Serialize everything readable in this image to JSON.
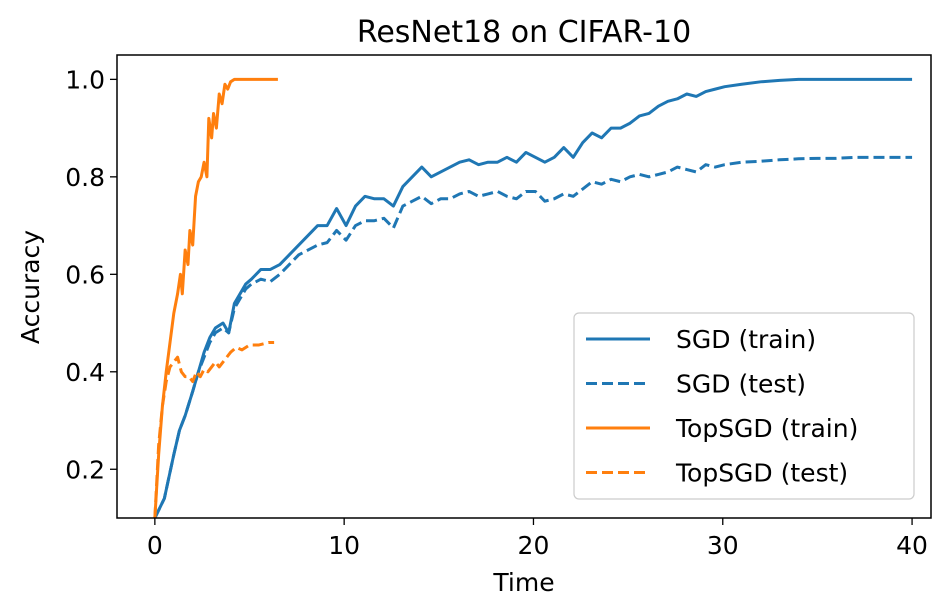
{
  "chart_data": {
    "type": "line",
    "title": "ResNet18 on CIFAR-10",
    "xlabel": "Time",
    "ylabel": "Accuracy",
    "xlim": [
      -2,
      41
    ],
    "ylim": [
      0.1,
      1.05
    ],
    "xticks": [
      "0",
      "10",
      "20",
      "30",
      "40"
    ],
    "yticks": [
      "0.2",
      "0.4",
      "0.6",
      "0.8",
      "1.0"
    ],
    "grid": false,
    "legend_position": "bottom-right",
    "series": [
      {
        "name": "SGD (train)",
        "color": "#1f77b4",
        "dash": "solid",
        "x": [
          0,
          0.5,
          1,
          1.3,
          1.6,
          2,
          2.3,
          2.6,
          2.9,
          3.2,
          3.6,
          3.9,
          4.2,
          4.5,
          4.8,
          5.1,
          5.6,
          6.1,
          6.6,
          7.1,
          7.6,
          8.1,
          8.6,
          9.1,
          9.6,
          10.1,
          10.6,
          11.1,
          11.6,
          12.1,
          12.6,
          13.1,
          13.6,
          14.1,
          14.6,
          15.1,
          15.6,
          16.1,
          16.6,
          17.1,
          17.6,
          18.1,
          18.6,
          19.1,
          19.6,
          20.1,
          20.6,
          21.1,
          21.6,
          22.1,
          22.6,
          23.1,
          23.6,
          24.1,
          24.6,
          25.1,
          25.6,
          26.1,
          26.6,
          27.1,
          27.6,
          28.1,
          28.6,
          29.1,
          29.6,
          30.1,
          31,
          32,
          33,
          34,
          35,
          36,
          37,
          38,
          39,
          40
        ],
        "y": [
          0.1,
          0.14,
          0.23,
          0.28,
          0.31,
          0.36,
          0.4,
          0.44,
          0.47,
          0.49,
          0.5,
          0.48,
          0.54,
          0.56,
          0.58,
          0.59,
          0.61,
          0.61,
          0.62,
          0.64,
          0.66,
          0.68,
          0.7,
          0.7,
          0.735,
          0.7,
          0.74,
          0.76,
          0.755,
          0.755,
          0.74,
          0.78,
          0.8,
          0.82,
          0.8,
          0.81,
          0.82,
          0.83,
          0.835,
          0.825,
          0.83,
          0.83,
          0.84,
          0.83,
          0.85,
          0.84,
          0.83,
          0.84,
          0.86,
          0.84,
          0.87,
          0.89,
          0.88,
          0.9,
          0.9,
          0.91,
          0.925,
          0.93,
          0.945,
          0.955,
          0.96,
          0.97,
          0.965,
          0.975,
          0.98,
          0.985,
          0.99,
          0.995,
          0.998,
          1.0,
          1.0,
          1.0,
          1.0,
          1.0,
          1.0,
          1.0
        ]
      },
      {
        "name": "SGD (test)",
        "color": "#1f77b4",
        "dash": "dashed",
        "x": [
          0,
          0.5,
          1,
          1.3,
          1.6,
          2,
          2.3,
          2.6,
          2.9,
          3.2,
          3.6,
          3.9,
          4.2,
          4.5,
          4.8,
          5.1,
          5.6,
          6.1,
          6.6,
          7.1,
          7.6,
          8.1,
          8.6,
          9.1,
          9.6,
          10.1,
          10.6,
          11.1,
          11.6,
          12.1,
          12.6,
          13.1,
          13.6,
          14.1,
          14.6,
          15.1,
          15.6,
          16.1,
          16.6,
          17.1,
          17.6,
          18.1,
          18.6,
          19.1,
          19.6,
          20.1,
          20.6,
          21.1,
          21.6,
          22.1,
          22.6,
          23.1,
          23.6,
          24.1,
          24.6,
          25.1,
          25.6,
          26.1,
          26.6,
          27.1,
          27.6,
          28.1,
          28.6,
          29.1,
          29.6,
          30.1,
          31,
          32,
          33,
          34,
          35,
          36,
          37,
          38,
          39,
          40
        ],
        "y": [
          0.1,
          0.14,
          0.23,
          0.28,
          0.31,
          0.36,
          0.4,
          0.43,
          0.46,
          0.48,
          0.49,
          0.48,
          0.53,
          0.55,
          0.57,
          0.58,
          0.59,
          0.585,
          0.6,
          0.62,
          0.64,
          0.65,
          0.66,
          0.665,
          0.69,
          0.67,
          0.7,
          0.71,
          0.71,
          0.715,
          0.695,
          0.74,
          0.75,
          0.76,
          0.745,
          0.755,
          0.755,
          0.765,
          0.77,
          0.76,
          0.765,
          0.77,
          0.76,
          0.755,
          0.77,
          0.77,
          0.75,
          0.755,
          0.765,
          0.76,
          0.775,
          0.79,
          0.785,
          0.795,
          0.79,
          0.8,
          0.805,
          0.8,
          0.805,
          0.81,
          0.82,
          0.815,
          0.81,
          0.825,
          0.82,
          0.825,
          0.83,
          0.832,
          0.835,
          0.837,
          0.838,
          0.838,
          0.84,
          0.84,
          0.84,
          0.84
        ]
      },
      {
        "name": "TopSGD (train)",
        "color": "#ff7f0e",
        "dash": "solid",
        "x": [
          0,
          0.2,
          0.4,
          0.6,
          0.8,
          1.0,
          1.2,
          1.35,
          1.45,
          1.6,
          1.75,
          1.85,
          2.0,
          2.15,
          2.3,
          2.45,
          2.6,
          2.75,
          2.85,
          3.0,
          3.1,
          3.25,
          3.4,
          3.55,
          3.7,
          3.85,
          4.0,
          4.2,
          4.5,
          5.0,
          5.5,
          6.0,
          6.5
        ],
        "y": [
          0.1,
          0.23,
          0.33,
          0.4,
          0.46,
          0.52,
          0.56,
          0.6,
          0.56,
          0.65,
          0.62,
          0.69,
          0.66,
          0.76,
          0.79,
          0.8,
          0.83,
          0.8,
          0.92,
          0.88,
          0.93,
          0.9,
          0.97,
          0.95,
          0.99,
          0.98,
          0.995,
          1.0,
          1.0,
          1.0,
          1.0,
          1.0,
          1.0
        ]
      },
      {
        "name": "TopSGD (test)",
        "color": "#ff7f0e",
        "dash": "dashed",
        "x": [
          0,
          0.2,
          0.4,
          0.6,
          0.8,
          1.0,
          1.2,
          1.4,
          1.6,
          1.8,
          2.0,
          2.2,
          2.4,
          2.6,
          2.8,
          3.0,
          3.2,
          3.4,
          3.6,
          3.8,
          4.0,
          4.3,
          4.6,
          5.0,
          5.5,
          6.0,
          6.3
        ],
        "y": [
          0.1,
          0.25,
          0.33,
          0.38,
          0.41,
          0.42,
          0.43,
          0.4,
          0.39,
          0.39,
          0.38,
          0.4,
          0.39,
          0.405,
          0.4,
          0.41,
          0.42,
          0.41,
          0.42,
          0.43,
          0.44,
          0.45,
          0.445,
          0.455,
          0.455,
          0.46,
          0.46
        ]
      }
    ]
  }
}
